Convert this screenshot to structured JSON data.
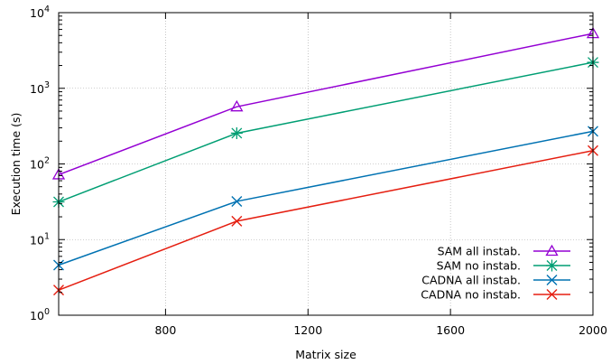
{
  "chart_data": {
    "type": "line",
    "title": "",
    "xlabel": "Matrix size",
    "ylabel": "Execution time (s)",
    "xlim": [
      500,
      2000
    ],
    "ylim": [
      1,
      10000
    ],
    "yscale": "log",
    "x_ticks": [
      800,
      1200,
      1600,
      2000
    ],
    "x_tick_labels": [
      "800",
      "1200",
      "1600",
      "2000"
    ],
    "y_ticks": [
      1,
      10,
      100,
      1000,
      10000
    ],
    "y_tick_labels": [
      {
        "base": "10",
        "exp": "0"
      },
      {
        "base": "10",
        "exp": "1"
      },
      {
        "base": "10",
        "exp": "2"
      },
      {
        "base": "10",
        "exp": "3"
      },
      {
        "base": "10",
        "exp": "4"
      }
    ],
    "grid": true,
    "legend_position": "bottom-right",
    "x": [
      500,
      1000,
      2000
    ],
    "series": [
      {
        "name": "SAM all instab.",
        "values": [
          72,
          570,
          5300
        ],
        "color": "#9400d3",
        "marker": "triangle"
      },
      {
        "name": "SAM no instab.",
        "values": [
          31.5,
          255,
          2200
        ],
        "color": "#009e73",
        "marker": "star"
      },
      {
        "name": "CADNA all instab.",
        "values": [
          4.6,
          32,
          270
        ],
        "color": "#0072b2",
        "marker": "cross"
      },
      {
        "name": "CADNA no instab.",
        "values": [
          2.15,
          17.5,
          150
        ],
        "color": "#e51e10",
        "marker": "cross"
      }
    ]
  }
}
